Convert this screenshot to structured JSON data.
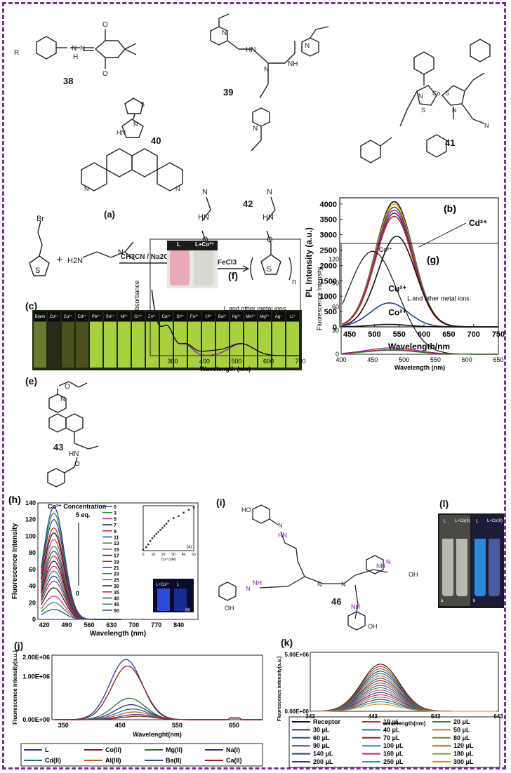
{
  "compounds": {
    "c38": "38",
    "c39": "39",
    "c40": "40",
    "c41": "41",
    "c42": "42",
    "c43": "43",
    "c46": "46"
  },
  "panels": {
    "a": "(a)",
    "b": "(b)",
    "c": "(c)",
    "e": "(e)",
    "f": "(f)",
    "g": "(g)",
    "h": "(h)",
    "i": "(i)",
    "j": "(j)",
    "k": "(k)",
    "l": "(l)"
  },
  "reaction": {
    "reagent1": "CH3CN / Na2CO3",
    "reagent2": "FeCl3",
    "plus": "+",
    "amine": "H2N",
    "br": "Br",
    "s": "S",
    "n": "n"
  },
  "panel_c": {
    "vials": [
      "Blank",
      "Co²⁺",
      "Cu²⁺",
      "Cd²⁺",
      "Pb²⁺",
      "Sn²⁺",
      "Ni²⁺",
      "Cr³⁺",
      "Zn²⁺",
      "Ca²⁺",
      "Sr²⁺",
      "Fe³⁺",
      "Al³⁺",
      "Ba²⁺",
      "Hg²⁺",
      "Mn²⁺",
      "Mg²⁺",
      "Ag⁺",
      "Li⁺"
    ]
  },
  "panel_f_vials": {
    "left": "L",
    "right": "L+Co²⁺"
  },
  "panel_l_vials": {
    "v1": "L",
    "v2": "L+Co(II)",
    "v3": "L",
    "v4": "L+Co(II)",
    "a": "a",
    "b": "b"
  },
  "chart_data": [
    {
      "id": "b",
      "type": "line",
      "xlabel": "Wavelength/nm",
      "ylabel": "PL Intensity (a.u.)",
      "xlim": [
        430,
        750
      ],
      "ylim": [
        0,
        4200
      ],
      "xticks": [
        "450",
        "500",
        "550",
        "600",
        "650",
        "700",
        "750"
      ],
      "yticks": [
        "0",
        "500",
        "1000",
        "1500",
        "2000",
        "2500",
        "3000",
        "3500",
        "4000"
      ],
      "annotations": [
        "Cd²⁺",
        "Cu²⁺",
        "Co²⁺"
      ],
      "series": [
        {
          "peak_x": 540,
          "peak": 4080,
          "color": "#111111"
        },
        {
          "peak_x": 540,
          "peak": 4000,
          "color": "#e8a317"
        },
        {
          "peak_x": 540,
          "peak": 3900,
          "color": "#2f6f2f"
        },
        {
          "peak_x": 540,
          "peak": 3800,
          "color": "#d02090"
        },
        {
          "peak_x": 540,
          "peak": 3700,
          "color": "#1e3c96"
        },
        {
          "peak_x": 540,
          "peak": 3600,
          "color": "#cc2222"
        },
        {
          "peak_x": 545,
          "peak": 2950,
          "color": "#111111"
        },
        {
          "peak_x": 530,
          "peak": 780,
          "color": "#1e3c96"
        },
        {
          "peak_x": 530,
          "peak": 80,
          "color": "#111111"
        }
      ]
    },
    {
      "id": "f",
      "type": "line",
      "xlabel": "Wavelength (nm)",
      "ylabel": "Absorbance",
      "xlim": [
        230,
        700
      ],
      "xticks": [
        "300",
        "400",
        "500",
        "600",
        "700"
      ],
      "annotations": [
        "L+Co²⁺",
        "L and other metal ions"
      ],
      "series": [
        {
          "name": "L and other metal ions",
          "color": "#7a1fa0"
        },
        {
          "name": "L+Co²⁺",
          "color": "#111111"
        }
      ]
    },
    {
      "id": "g",
      "type": "line",
      "xlabel": "Wavelength (nm)",
      "ylabel": "Fluorescence Intensity",
      "xlim": [
        400,
        650
      ],
      "ylim": [
        0,
        140
      ],
      "xticks": [
        "400",
        "450",
        "500",
        "550",
        "600",
        "650"
      ],
      "yticks": [
        "0",
        "30",
        "60",
        "90",
        "120"
      ],
      "annotations": [
        "Co²⁺",
        "L and other metal ions"
      ],
      "series": [
        {
          "name": "Co²⁺",
          "peak_x": 450,
          "peak": 130,
          "color": "#111111"
        },
        {
          "peak_x": 480,
          "peak": 8,
          "color": "#7a1fa0"
        },
        {
          "peak_x": 480,
          "peak": 6,
          "color": "#cc2222"
        },
        {
          "peak_x": 480,
          "peak": 5,
          "color": "#2f6f2f"
        }
      ]
    },
    {
      "id": "h",
      "type": "line",
      "xlabel": "Wavelength (nm)",
      "ylabel": "Fluorescence Intensity",
      "xlim": [
        400,
        900
      ],
      "ylim": [
        0,
        140
      ],
      "xticks": [
        "420",
        "490",
        "560",
        "630",
        "700",
        "770",
        "840"
      ],
      "yticks": [
        "0",
        "20",
        "40",
        "60",
        "80",
        "100",
        "120",
        "140"
      ],
      "annotations": [
        "Co²⁺ Concentration",
        "5 eq.",
        "0"
      ],
      "legend": [
        "0",
        "3",
        "5",
        "7",
        "9",
        "11",
        "13",
        "15",
        "17",
        "19",
        "21",
        "23",
        "25",
        "30",
        "35",
        "40",
        "45",
        "50"
      ],
      "peaks": [
        12,
        20,
        28,
        38,
        46,
        52,
        58,
        64,
        70,
        76,
        82,
        88,
        96,
        104,
        110,
        120,
        128,
        135
      ],
      "colors": [
        "#1e3c96",
        "#2a8a2a",
        "#d02090",
        "#111111",
        "#cc2222",
        "#1e3c96",
        "#2a8a2a",
        "#d02090",
        "#111111",
        "#cc2222",
        "#1e3c96",
        "#2a8a2a",
        "#d02090",
        "#111111",
        "#cc2222",
        "#1e3c96",
        "#2a8a2a",
        "#1e3c96"
      ],
      "inset": {
        "label": "(a)",
        "xlabel": "Co²⁺(uM)",
        "ylabel": "Fluorescence Intensity",
        "xticks": [
          "0",
          "10",
          "20",
          "30",
          "40",
          "50"
        ],
        "yticks": [
          "20",
          "40",
          "60",
          "80",
          "100",
          "120",
          "140"
        ],
        "x": [
          0,
          3,
          5,
          7,
          9,
          11,
          13,
          15,
          17,
          19,
          21,
          23,
          25,
          30,
          35,
          40,
          45,
          50
        ],
        "y": [
          12,
          20,
          28,
          38,
          46,
          52,
          58,
          64,
          70,
          76,
          82,
          88,
          96,
          104,
          110,
          120,
          128,
          135
        ]
      },
      "inset_b": {
        "label": "(b)",
        "left": "L+Co²⁺",
        "right": "L"
      }
    },
    {
      "id": "j",
      "type": "line",
      "xlabel": "Wavelenght(nm)",
      "ylabel": "Fluorescence intensity(a.u.)",
      "xlim": [
        330,
        700
      ],
      "ylim": [
        0,
        1500000
      ],
      "xticks": [
        "350",
        "450",
        "550",
        "650"
      ],
      "yticks": [
        "0.00E+00",
        "1.00E+06",
        "2.00E+06"
      ],
      "legend": [
        {
          "name": "L",
          "color": "#1e3c96"
        },
        {
          "name": "Co(II)",
          "color": "#7a1f1f"
        },
        {
          "name": "Mg(II)",
          "color": "#2f6f2f"
        },
        {
          "name": "Na(I)",
          "color": "#3c2a7a"
        },
        {
          "name": "Cd(II)",
          "color": "#1a6fa0"
        },
        {
          "name": "Al(III)",
          "color": "#cc5522"
        },
        {
          "name": "Ba(II)",
          "color": "#24508c"
        },
        {
          "name": "Ca(II)",
          "color": "#a01f1f"
        }
      ],
      "peaks": [
        1400000,
        1250000,
        500000,
        350000,
        250000,
        180000,
        120000,
        80000
      ]
    },
    {
      "id": "k",
      "type": "line",
      "xlabel": "wavelength(nm)",
      "ylabel": "Fluorescence intensity(a.u.)",
      "xlim": [
        343,
        643
      ],
      "ylim": [
        0,
        5000000
      ],
      "xticks": [
        "343",
        "443",
        "543",
        "643"
      ],
      "yticks": [
        "0.00E+00",
        "5.00E+06"
      ],
      "legend": [
        {
          "name": "Receptor",
          "color": "#111111"
        },
        {
          "name": "10 μL",
          "color": "#cc2222"
        },
        {
          "name": "20 μL",
          "color": "#2a8a2a"
        },
        {
          "name": "30 μL",
          "color": "#3c2a7a"
        },
        {
          "name": "40 μL",
          "color": "#1a6fa0"
        },
        {
          "name": "50 μL",
          "color": "#cc7722"
        },
        {
          "name": "60 μL",
          "color": "#24508c"
        },
        {
          "name": "70 μL",
          "color": "#a01f1f"
        },
        {
          "name": "80 μL",
          "color": "#6a8a2a"
        },
        {
          "name": "90 μL",
          "color": "#5a3a9a"
        },
        {
          "name": "100 μL",
          "color": "#1a8aa0"
        },
        {
          "name": "120 μL",
          "color": "#cc5522"
        },
        {
          "name": "140 μL",
          "color": "#1e3c96"
        },
        {
          "name": "160 μL",
          "color": "#cc2266"
        },
        {
          "name": "180 μL",
          "color": "#7aa02a"
        },
        {
          "name": "200 μL",
          "color": "#3a3a8a"
        },
        {
          "name": "250 μL",
          "color": "#2a9aa0"
        },
        {
          "name": "300 μL",
          "color": "#dd8822"
        }
      ]
    }
  ]
}
